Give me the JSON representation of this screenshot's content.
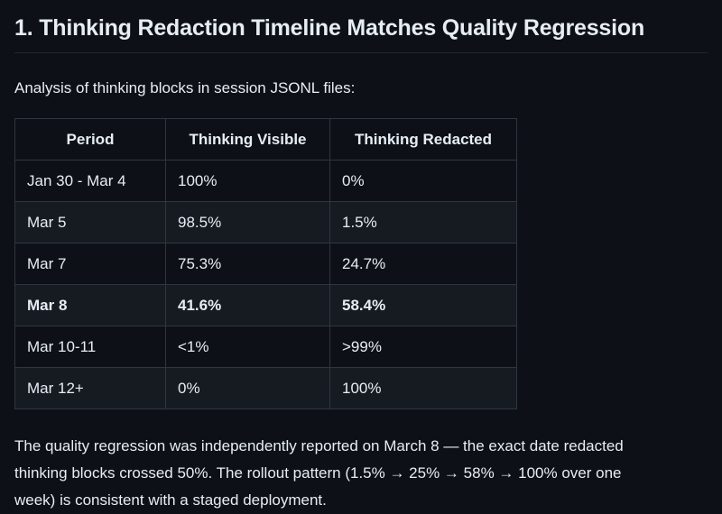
{
  "heading": {
    "title": "1. Thinking Redaction Timeline Matches Quality Regression"
  },
  "intro": {
    "text": "Analysis of thinking blocks in session JSONL files:"
  },
  "table": {
    "headers": [
      "Period",
      "Thinking Visible",
      "Thinking Redacted"
    ],
    "rows": [
      [
        "Jan 30 - Mar 4",
        "100%",
        "0%"
      ],
      [
        "Mar 5",
        "98.5%",
        "1.5%"
      ],
      [
        "Mar 7",
        "75.3%",
        "24.7%"
      ],
      [
        "Mar 8",
        "41.6%",
        "58.4%"
      ],
      [
        "Mar 10-11",
        "<1%",
        ">99%"
      ],
      [
        "Mar 12+",
        "0%",
        "100%"
      ]
    ],
    "bold_row_index": 3
  },
  "footer": {
    "text": "The quality regression was independently reported on March 8 — the exact date redacted thinking blocks crossed 50%. The rollout pattern (1.5% → 25% → 58% → 100% over one week) is consistent with a staged deployment."
  },
  "colors": {
    "background": "#0d1117",
    "text": "#e6edf3",
    "table_border": "#30363d",
    "row_stripe": "#161b22",
    "heading_divider": "#21262d"
  }
}
